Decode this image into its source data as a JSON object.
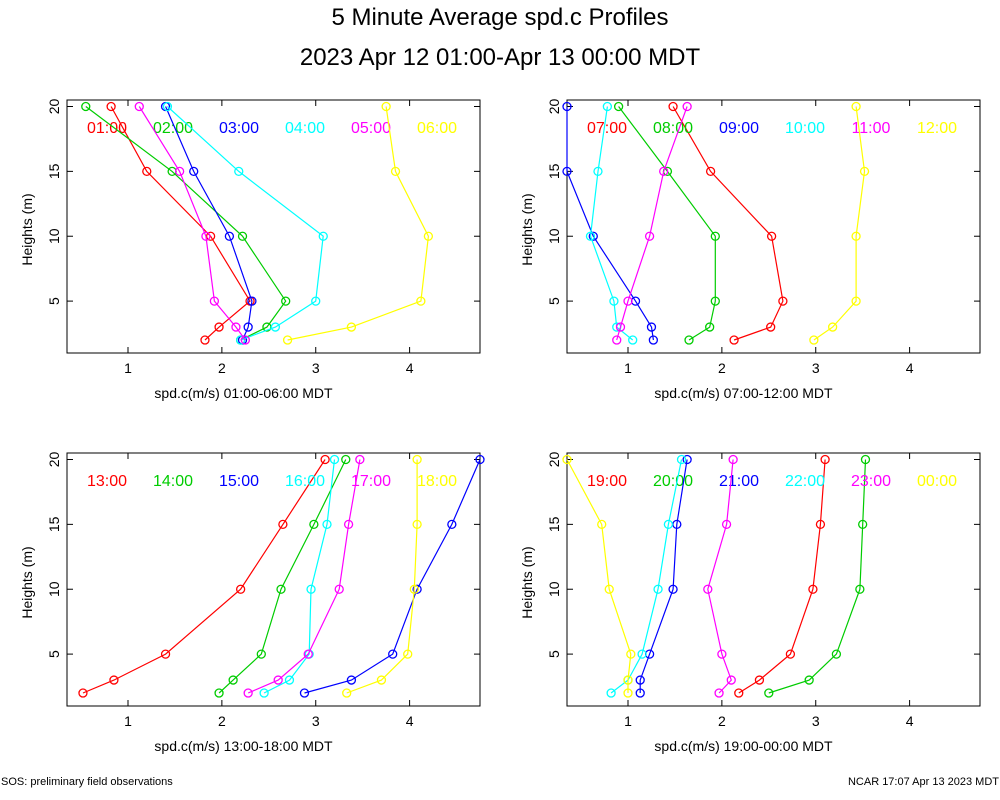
{
  "title": "5 Minute Average spd.c Profiles",
  "subtitle": "2023 Apr 12 01:00-Apr 13 00:00 MDT",
  "footer_left": "SOS: preliminary field observations",
  "footer_right": "NCAR 17:07 Apr 13 2023 MDT",
  "colors": [
    "#ff0000",
    "#00cc00",
    "#0000ff",
    "#00ffff",
    "#ff00ff",
    "#ffff00"
  ],
  "chart_data": [
    {
      "type": "line",
      "xlabel": "spd.c(m/s) 01:00-06:00 MDT",
      "ylabel": "Heights (m)",
      "xlim": [
        0.35,
        4.75
      ],
      "ylim": [
        1,
        20.5
      ],
      "xticks": [
        "1",
        "2",
        "3",
        "4"
      ],
      "yticks": [
        "5",
        "10",
        "15",
        "20"
      ],
      "heights": [
        2,
        3,
        5,
        10,
        15,
        20
      ],
      "series": [
        {
          "name": "01:00",
          "values": [
            1.82,
            1.97,
            2.3,
            1.88,
            1.2,
            0.82
          ]
        },
        {
          "name": "02:00",
          "values": [
            2.2,
            2.48,
            2.68,
            2.22,
            1.47,
            0.55
          ]
        },
        {
          "name": "03:00",
          "values": [
            2.22,
            2.28,
            2.32,
            2.08,
            1.7,
            1.4
          ]
        },
        {
          "name": "04:00",
          "values": [
            2.2,
            2.57,
            3.0,
            3.08,
            2.18,
            1.42
          ]
        },
        {
          "name": "05:00",
          "values": [
            2.25,
            2.15,
            1.92,
            1.83,
            1.55,
            1.12
          ]
        },
        {
          "name": "06:00",
          "values": [
            2.7,
            3.38,
            4.12,
            4.2,
            3.85,
            3.75
          ]
        }
      ]
    },
    {
      "type": "line",
      "xlabel": "spd.c(m/s) 07:00-12:00 MDT",
      "ylabel": "Heights (m)",
      "xlim": [
        0.35,
        4.75
      ],
      "ylim": [
        1,
        20.5
      ],
      "xticks": [
        "1",
        "2",
        "3",
        "4"
      ],
      "yticks": [
        "5",
        "10",
        "15",
        "20"
      ],
      "heights": [
        2,
        3,
        5,
        10,
        15,
        20
      ],
      "series": [
        {
          "name": "07:00",
          "values": [
            2.13,
            2.52,
            2.65,
            2.53,
            1.88,
            1.48
          ]
        },
        {
          "name": "08:00",
          "values": [
            1.65,
            1.87,
            1.93,
            1.93,
            1.42,
            0.9
          ]
        },
        {
          "name": "09:00",
          "values": [
            1.27,
            1.25,
            1.08,
            0.63,
            0.35,
            0.35
          ]
        },
        {
          "name": "10:00",
          "values": [
            1.05,
            0.88,
            0.85,
            0.6,
            0.68,
            0.78
          ]
        },
        {
          "name": "11:00",
          "values": [
            0.88,
            0.92,
            1.0,
            1.23,
            1.38,
            1.63
          ]
        },
        {
          "name": "12:00",
          "values": [
            2.98,
            3.18,
            3.43,
            3.43,
            3.52,
            3.43
          ]
        }
      ]
    },
    {
      "type": "line",
      "xlabel": "spd.c(m/s) 13:00-18:00 MDT",
      "ylabel": "Heights (m)",
      "xlim": [
        0.35,
        4.75
      ],
      "ylim": [
        1,
        20.5
      ],
      "xticks": [
        "1",
        "2",
        "3",
        "4"
      ],
      "yticks": [
        "5",
        "10",
        "15",
        "20"
      ],
      "heights": [
        2,
        3,
        5,
        10,
        15,
        20
      ],
      "series": [
        {
          "name": "13:00",
          "values": [
            0.52,
            0.85,
            1.4,
            2.2,
            2.65,
            3.1
          ]
        },
        {
          "name": "14:00",
          "values": [
            1.97,
            2.12,
            2.42,
            2.63,
            2.98,
            3.32
          ]
        },
        {
          "name": "15:00",
          "values": [
            2.88,
            3.38,
            3.82,
            4.08,
            4.45,
            4.75
          ]
        },
        {
          "name": "16:00",
          "values": [
            2.45,
            2.72,
            2.93,
            2.95,
            3.12,
            3.2
          ]
        },
        {
          "name": "17:00",
          "values": [
            2.28,
            2.6,
            2.92,
            3.25,
            3.35,
            3.47
          ]
        },
        {
          "name": "18:00",
          "values": [
            3.33,
            3.7,
            3.98,
            4.05,
            4.08,
            4.08
          ]
        }
      ]
    },
    {
      "type": "line",
      "xlabel": "spd.c(m/s) 19:00-00:00 MDT",
      "ylabel": "Heights (m)",
      "xlim": [
        0.35,
        4.75
      ],
      "ylim": [
        1,
        20.5
      ],
      "xticks": [
        "1",
        "2",
        "3",
        "4"
      ],
      "yticks": [
        "5",
        "10",
        "15",
        "20"
      ],
      "heights": [
        2,
        3,
        5,
        10,
        15,
        20
      ],
      "series": [
        {
          "name": "19:00",
          "values": [
            2.18,
            2.4,
            2.73,
            2.97,
            3.05,
            3.1
          ]
        },
        {
          "name": "20:00",
          "values": [
            2.5,
            2.93,
            3.22,
            3.47,
            3.5,
            3.53
          ]
        },
        {
          "name": "21:00",
          "values": [
            1.13,
            1.13,
            1.23,
            1.48,
            1.52,
            1.63
          ]
        },
        {
          "name": "22:00",
          "values": [
            0.82,
            1.0,
            1.15,
            1.32,
            1.43,
            1.57
          ]
        },
        {
          "name": "23:00",
          "values": [
            1.97,
            2.1,
            2.0,
            1.85,
            2.05,
            2.12
          ]
        },
        {
          "name": "00:00",
          "values": [
            1.0,
            1.0,
            1.03,
            0.8,
            0.72,
            0.35
          ]
        }
      ]
    }
  ]
}
